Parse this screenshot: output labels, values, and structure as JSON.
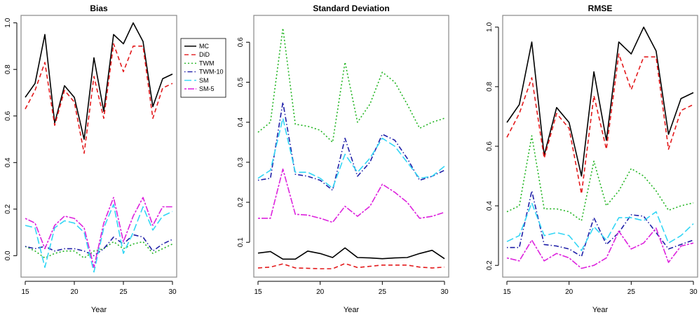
{
  "chart_data": [
    {
      "type": "line",
      "title": "Bias",
      "xlabel": "Year",
      "ylabel": "",
      "xlim": [
        15,
        30
      ],
      "ylim": [
        -0.08,
        1.02
      ],
      "xticks": [
        15,
        20,
        25,
        30
      ],
      "yticks": [
        0.0,
        0.2,
        0.4,
        0.6,
        0.8,
        1.0
      ],
      "ytick_labels": [
        "0.0",
        "0.2",
        "0.4",
        "0.6",
        "0.8",
        "1.0"
      ],
      "x": [
        15,
        16,
        17,
        18,
        19,
        20,
        21,
        22,
        23,
        24,
        25,
        26,
        27,
        28,
        29,
        30
      ],
      "legend": {
        "position": "right",
        "entries": [
          "MC",
          "DiD",
          "TWM",
          "TWM-10",
          "SM",
          "SM-5"
        ]
      },
      "series": [
        {
          "name": "MC",
          "color": "#000000",
          "dash": "solid",
          "values": [
            0.68,
            0.74,
            0.95,
            0.57,
            0.73,
            0.68,
            0.5,
            0.85,
            0.62,
            0.95,
            0.91,
            1.0,
            0.92,
            0.64,
            0.76,
            0.78
          ]
        },
        {
          "name": "DiD",
          "color": "#e31a1c",
          "dash": "dashed",
          "values": [
            0.63,
            0.71,
            0.83,
            0.56,
            0.71,
            0.66,
            0.44,
            0.77,
            0.59,
            0.91,
            0.79,
            0.9,
            0.9,
            0.59,
            0.72,
            0.74
          ]
        },
        {
          "name": "TWM",
          "color": "#22b522",
          "dash": "dotted",
          "values": [
            0.04,
            0.02,
            -0.01,
            0.01,
            0.02,
            0.02,
            -0.01,
            0.02,
            0.03,
            0.06,
            0.03,
            0.05,
            0.06,
            0.01,
            0.03,
            0.05
          ]
        },
        {
          "name": "TWM-10",
          "color": "#1f1fa8",
          "dash": "dotdash",
          "values": [
            0.04,
            0.03,
            0.04,
            0.02,
            0.03,
            0.03,
            0.02,
            0.0,
            0.03,
            0.08,
            0.05,
            0.09,
            0.08,
            0.02,
            0.05,
            0.07
          ]
        },
        {
          "name": "SM",
          "color": "#33d6f5",
          "dash": "longdash",
          "values": [
            0.13,
            0.12,
            -0.05,
            0.12,
            0.15,
            0.14,
            0.1,
            -0.07,
            0.12,
            0.22,
            0.01,
            0.1,
            0.21,
            0.11,
            0.17,
            0.19
          ]
        },
        {
          "name": "SM-5",
          "color": "#dd22dd",
          "dash": "twodash",
          "values": [
            0.16,
            0.14,
            0.03,
            0.13,
            0.17,
            0.16,
            0.12,
            -0.05,
            0.14,
            0.25,
            0.06,
            0.17,
            0.25,
            0.13,
            0.21,
            0.21
          ]
        }
      ]
    },
    {
      "type": "line",
      "title": "Standard Deviation",
      "xlabel": "Year",
      "ylabel": "",
      "xlim": [
        15,
        30
      ],
      "ylim": [
        0.02,
        0.66
      ],
      "xticks": [
        15,
        20,
        25,
        30
      ],
      "yticks": [
        0.1,
        0.2,
        0.3,
        0.4,
        0.5,
        0.6
      ],
      "ytick_labels": [
        "0.1",
        "0.2",
        "0.3",
        "0.4",
        "0.5",
        "0.6"
      ],
      "x": [
        15,
        16,
        17,
        18,
        19,
        20,
        21,
        22,
        23,
        24,
        25,
        26,
        27,
        28,
        29,
        30
      ],
      "series": [
        {
          "name": "MC",
          "color": "#000000",
          "dash": "solid",
          "values": [
            0.073,
            0.077,
            0.058,
            0.058,
            0.078,
            0.072,
            0.062,
            0.086,
            0.062,
            0.061,
            0.059,
            0.061,
            0.062,
            0.072,
            0.08,
            0.059
          ]
        },
        {
          "name": "DiD",
          "color": "#e31a1c",
          "dash": "dashed",
          "values": [
            0.036,
            0.038,
            0.046,
            0.036,
            0.035,
            0.034,
            0.034,
            0.047,
            0.037,
            0.04,
            0.043,
            0.043,
            0.043,
            0.038,
            0.036,
            0.038
          ]
        },
        {
          "name": "TWM",
          "color": "#22b522",
          "dash": "dotted",
          "values": [
            0.375,
            0.4,
            0.635,
            0.395,
            0.39,
            0.38,
            0.35,
            0.55,
            0.4,
            0.445,
            0.525,
            0.5,
            0.445,
            0.385,
            0.4,
            0.41
          ]
        },
        {
          "name": "TWM-10",
          "color": "#1f1fa8",
          "dash": "dotdash",
          "values": [
            0.255,
            0.26,
            0.45,
            0.27,
            0.265,
            0.255,
            0.23,
            0.36,
            0.265,
            0.3,
            0.37,
            0.355,
            0.31,
            0.255,
            0.265,
            0.28
          ]
        },
        {
          "name": "SM",
          "color": "#33d6f5",
          "dash": "longdash",
          "values": [
            0.26,
            0.28,
            0.41,
            0.275,
            0.275,
            0.26,
            0.235,
            0.32,
            0.275,
            0.31,
            0.36,
            0.34,
            0.3,
            0.26,
            0.265,
            0.29
          ]
        },
        {
          "name": "SM-5",
          "color": "#dd22dd",
          "dash": "twodash",
          "values": [
            0.16,
            0.16,
            0.283,
            0.17,
            0.168,
            0.16,
            0.15,
            0.19,
            0.165,
            0.19,
            0.245,
            0.225,
            0.2,
            0.16,
            0.165,
            0.175
          ]
        }
      ]
    },
    {
      "type": "line",
      "title": "RMSE",
      "xlabel": "Year",
      "ylabel": "",
      "xlim": [
        15,
        30
      ],
      "ylim": [
        0.17,
        1.03
      ],
      "xticks": [
        15,
        20,
        25,
        30
      ],
      "yticks": [
        0.2,
        0.4,
        0.6,
        0.8,
        1.0
      ],
      "ytick_labels": [
        "0.2",
        "0.4",
        "0.6",
        "0.8",
        "1.0"
      ],
      "x": [
        15,
        16,
        17,
        18,
        19,
        20,
        21,
        22,
        23,
        24,
        25,
        26,
        27,
        28,
        29,
        30
      ],
      "series": [
        {
          "name": "MC",
          "color": "#000000",
          "dash": "solid",
          "values": [
            0.68,
            0.74,
            0.95,
            0.57,
            0.73,
            0.68,
            0.5,
            0.85,
            0.62,
            0.95,
            0.91,
            1.0,
            0.92,
            0.64,
            0.76,
            0.78
          ]
        },
        {
          "name": "DiD",
          "color": "#e31a1c",
          "dash": "dashed",
          "values": [
            0.63,
            0.71,
            0.83,
            0.56,
            0.71,
            0.66,
            0.44,
            0.77,
            0.59,
            0.91,
            0.79,
            0.9,
            0.9,
            0.59,
            0.72,
            0.74
          ]
        },
        {
          "name": "TWM",
          "color": "#22b522",
          "dash": "dotted",
          "values": [
            0.38,
            0.4,
            0.635,
            0.39,
            0.39,
            0.38,
            0.35,
            0.55,
            0.4,
            0.45,
            0.525,
            0.5,
            0.45,
            0.385,
            0.4,
            0.41
          ]
        },
        {
          "name": "TWM-10",
          "color": "#1f1fa8",
          "dash": "dotdash",
          "values": [
            0.26,
            0.26,
            0.45,
            0.27,
            0.265,
            0.255,
            0.23,
            0.36,
            0.27,
            0.31,
            0.37,
            0.365,
            0.31,
            0.255,
            0.27,
            0.285
          ]
        },
        {
          "name": "SM",
          "color": "#33d6f5",
          "dash": "longdash",
          "values": [
            0.28,
            0.3,
            0.41,
            0.3,
            0.31,
            0.3,
            0.25,
            0.33,
            0.285,
            0.36,
            0.36,
            0.35,
            0.38,
            0.275,
            0.3,
            0.34
          ]
        },
        {
          "name": "SM-5",
          "color": "#dd22dd",
          "dash": "twodash",
          "values": [
            0.225,
            0.215,
            0.285,
            0.215,
            0.24,
            0.225,
            0.19,
            0.2,
            0.225,
            0.315,
            0.255,
            0.275,
            0.325,
            0.21,
            0.265,
            0.275
          ]
        }
      ]
    }
  ]
}
